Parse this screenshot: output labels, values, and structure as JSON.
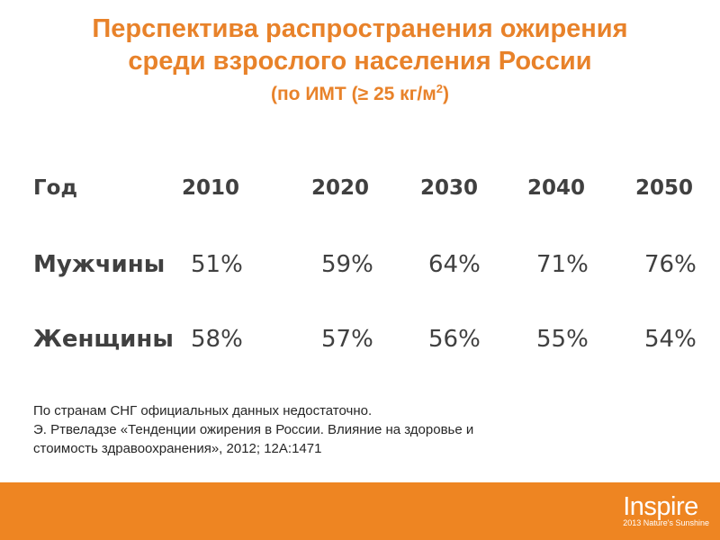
{
  "title": {
    "line1": "Перспектива распространения ожирения",
    "line2": "среди взрослого населения России",
    "subtitle_prefix": "(по ИМТ (≥ 25 кг/м",
    "subtitle_sup": "2",
    "subtitle_suffix": ")"
  },
  "table": {
    "header": {
      "label": "Год",
      "years": [
        "2010",
        "2020",
        "2030",
        "2040",
        "2050"
      ]
    },
    "rows": [
      {
        "label": "Мужчины",
        "values": [
          "51%",
          "59%",
          "64%",
          "71%",
          "76%"
        ]
      },
      {
        "label": "Женщины",
        "values": [
          "58%",
          "57%",
          "56%",
          "55%",
          "54%"
        ]
      }
    ]
  },
  "note": {
    "line1": "По странам СНГ официальных данных недостаточно.",
    "line2": "Э. Ртвеладзе «Тенденции ожирения в России. Влияние на здоровье и",
    "line3": "стоимость здравоохранения», 2012; 12A:1471"
  },
  "footer": {
    "logo_brand": "Inspire",
    "logo_tagline": "2013 Nature's Sunshine",
    "bar_color": "#EE8522"
  },
  "colors": {
    "title": "#E8822A",
    "table_text": "#404040"
  }
}
